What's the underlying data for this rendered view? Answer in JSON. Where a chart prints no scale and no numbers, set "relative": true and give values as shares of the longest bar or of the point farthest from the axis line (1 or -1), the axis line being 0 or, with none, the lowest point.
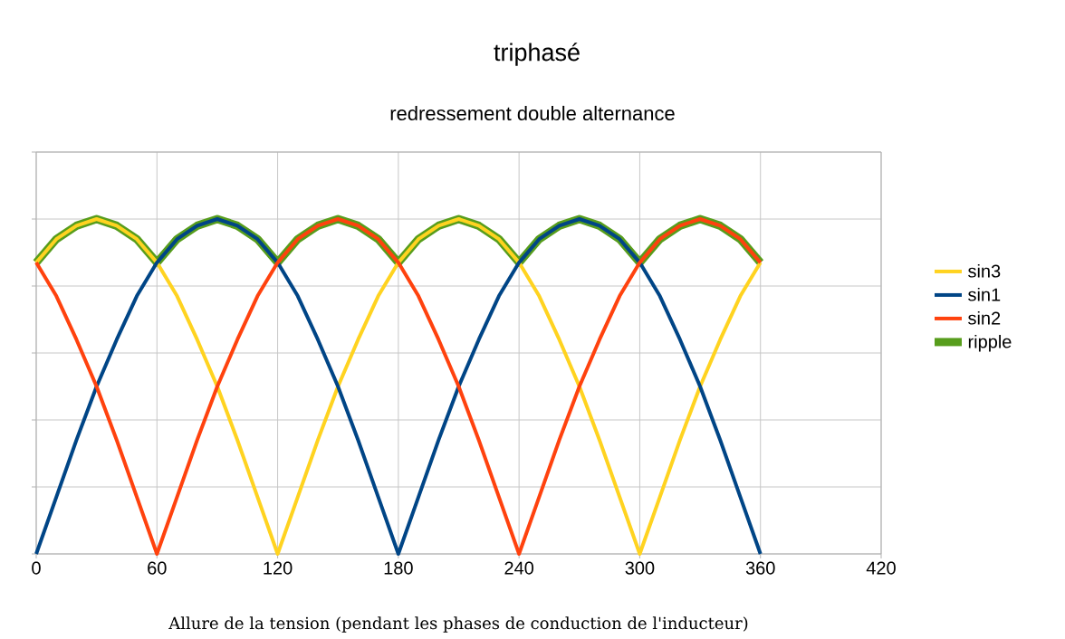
{
  "chart_data": {
    "type": "line",
    "title": "triphasé",
    "subtitle": "redressement double alternance",
    "xlabel": "Allure de la tension (pendant les phases de conduction de l'inducteur)",
    "relative": true,
    "xlim": [
      0,
      420
    ],
    "xticks": [
      0,
      60,
      120,
      180,
      240,
      300,
      360,
      420
    ],
    "grid": true,
    "legend": "right",
    "tick_labels": "x",
    "marker": "none",
    "line_style": "solid",
    "x": [
      0,
      10,
      20,
      30,
      40,
      50,
      60,
      70,
      80,
      90,
      100,
      110,
      120,
      130,
      140,
      150,
      160,
      170,
      180,
      190,
      200,
      210,
      220,
      230,
      240,
      250,
      260,
      270,
      280,
      290,
      300,
      310,
      320,
      330,
      340,
      350,
      360
    ],
    "series": [
      {
        "name": "sin3",
        "color": "#ffd320",
        "values": [
          0.87,
          0.94,
          0.98,
          1,
          0.98,
          0.94,
          0.87,
          0.77,
          0.64,
          0.5,
          0.34,
          0.17,
          0,
          0.17,
          0.34,
          0.5,
          0.64,
          0.77,
          0.87,
          0.94,
          0.98,
          1,
          0.98,
          0.94,
          0.87,
          0.77,
          0.64,
          0.5,
          0.34,
          0.17,
          0,
          0.17,
          0.34,
          0.5,
          0.64,
          0.77,
          0.87
        ]
      },
      {
        "name": "sin1",
        "color": "#004586",
        "values": [
          0,
          0.17,
          0.34,
          0.5,
          0.64,
          0.77,
          0.87,
          0.94,
          0.98,
          1,
          0.98,
          0.94,
          0.87,
          0.77,
          0.64,
          0.5,
          0.34,
          0.17,
          0,
          0.17,
          0.34,
          0.5,
          0.64,
          0.77,
          0.87,
          0.94,
          0.98,
          1,
          0.98,
          0.94,
          0.87,
          0.77,
          0.64,
          0.5,
          0.34,
          0.17,
          0
        ]
      },
      {
        "name": "sin2",
        "color": "#ff420e",
        "values": [
          0.87,
          0.77,
          0.64,
          0.5,
          0.34,
          0.17,
          0,
          0.17,
          0.34,
          0.5,
          0.64,
          0.77,
          0.87,
          0.94,
          0.98,
          1,
          0.98,
          0.94,
          0.87,
          0.77,
          0.64,
          0.5,
          0.34,
          0.17,
          0,
          0.17,
          0.34,
          0.5,
          0.64,
          0.77,
          0.87,
          0.94,
          0.98,
          1,
          0.98,
          0.94,
          0.87
        ]
      },
      {
        "name": "ripple",
        "color": "#579d1c",
        "values": [
          0.87,
          0.94,
          0.98,
          1,
          0.98,
          0.94,
          0.87,
          0.94,
          0.98,
          1,
          0.98,
          0.94,
          0.87,
          0.94,
          0.98,
          1,
          0.98,
          0.94,
          0.87,
          0.94,
          0.98,
          1,
          0.98,
          0.94,
          0.87,
          0.94,
          0.98,
          1,
          0.98,
          0.94,
          0.87,
          0.94,
          0.98,
          1,
          0.98,
          0.94,
          0.87
        ]
      }
    ]
  }
}
